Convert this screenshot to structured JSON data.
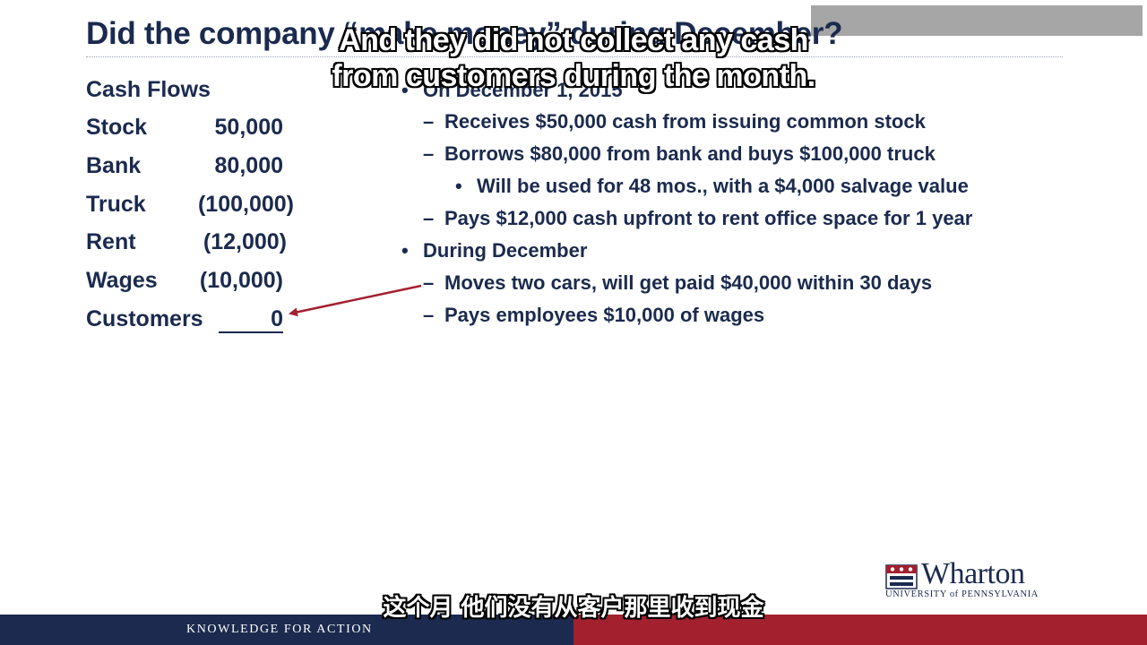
{
  "slide": {
    "title": "Did the company “make money” during December?"
  },
  "captions": {
    "en_line1": "And they did not collect any cash",
    "en_line2": "from customers during the month.",
    "zh": "这个月 他们没有从客户那里收到现金"
  },
  "cash_flows": {
    "heading": "Cash Flows",
    "rows": [
      {
        "label": "Stock",
        "value": "50,000"
      },
      {
        "label": "Bank",
        "value": "80,000"
      },
      {
        "label": "Truck",
        "value": "(100,000)"
      },
      {
        "label": "Rent",
        "value": "(12,000)"
      },
      {
        "label": "Wages",
        "value": "(10,000)"
      },
      {
        "label": "Customers",
        "value": "0"
      }
    ]
  },
  "bullets": [
    {
      "level": 1,
      "marker": "•",
      "text": "On December 1, 2015"
    },
    {
      "level": 2,
      "marker": "–",
      "text": "Receives $50,000 cash from issuing common stock"
    },
    {
      "level": 2,
      "marker": "–",
      "text": "Borrows $80,000 from bank and buys $100,000 truck"
    },
    {
      "level": 3,
      "marker": "•",
      "text": "Will be used for 48 mos., with a $4,000 salvage value"
    },
    {
      "level": 2,
      "marker": "–",
      "text": "Pays $12,000 cash upfront to rent office space for 1 year"
    },
    {
      "level": 1,
      "marker": "•",
      "text": "During December"
    },
    {
      "level": 2,
      "marker": "–",
      "text": "Moves two cars, will get paid $40,000 within 30 days"
    },
    {
      "level": 2,
      "marker": "–",
      "text": "Pays employees $10,000 of wages"
    }
  ],
  "logo": {
    "wordmark": "Wharton",
    "subtitle": "UNIVERSITY of PENNSYLVANIA"
  },
  "footer": {
    "tagline": "KNOWLEDGE FOR ACTION"
  },
  "colors": {
    "navy": "#1b2a4e",
    "red": "#a3202f",
    "arrow": "#a3202f"
  }
}
